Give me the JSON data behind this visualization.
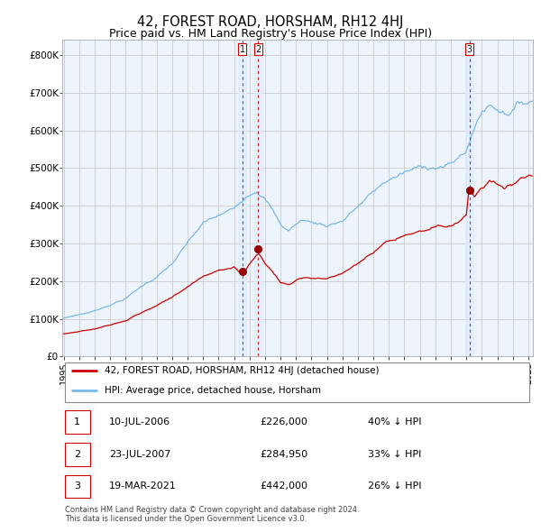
{
  "title": "42, FOREST ROAD, HORSHAM, RH12 4HJ",
  "subtitle": "Price paid vs. HM Land Registry's House Price Index (HPI)",
  "title_fontsize": 10.5,
  "subtitle_fontsize": 9,
  "ylabel_ticks": [
    "£0",
    "£100K",
    "£200K",
    "£300K",
    "£400K",
    "£500K",
    "£600K",
    "£700K",
    "£800K"
  ],
  "ytick_values": [
    0,
    100000,
    200000,
    300000,
    400000,
    500000,
    600000,
    700000,
    800000
  ],
  "ylim": [
    0,
    840000
  ],
  "xlim_start": 1994.9,
  "xlim_end": 2025.3,
  "grid_color": "#cccccc",
  "background_color": "#ffffff",
  "plot_bg_color": "#eef4fb",
  "hpi_color": "#7ab8e8",
  "price_color": "#cc0000",
  "sale_marker_color": "#990000",
  "vline_color": "#cc0000",
  "transactions": [
    {
      "label": "1",
      "date_num": 2006.52,
      "price": 226000
    },
    {
      "label": "2",
      "date_num": 2007.55,
      "price": 284950
    },
    {
      "label": "3",
      "date_num": 2021.21,
      "price": 442000
    }
  ],
  "legend_entries": [
    {
      "label": "42, FOREST ROAD, HORSHAM, RH12 4HJ (detached house)",
      "color": "#cc0000"
    },
    {
      "label": "HPI: Average price, detached house, Horsham",
      "color": "#7ab8e8"
    }
  ],
  "table_rows": [
    {
      "num": "1",
      "date": "10-JUL-2006",
      "price": "£226,000",
      "pct": "40% ↓ HPI"
    },
    {
      "num": "2",
      "date": "23-JUL-2007",
      "price": "£284,950",
      "pct": "33% ↓ HPI"
    },
    {
      "num": "3",
      "date": "19-MAR-2021",
      "price": "£442,000",
      "pct": "26% ↓ HPI"
    }
  ],
  "footnote": "Contains HM Land Registry data © Crown copyright and database right 2024.\nThis data is licensed under the Open Government Licence v3.0."
}
